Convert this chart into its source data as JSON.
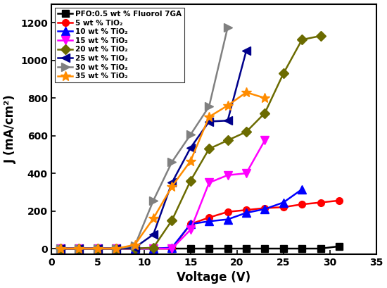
{
  "xlabel": "Voltage (V)",
  "ylabel": "J (mA/cm²)",
  "xlim": [
    0,
    35
  ],
  "ylim": [
    -30,
    1300
  ],
  "yticks": [
    0,
    200,
    400,
    600,
    800,
    1000,
    1200
  ],
  "xticks": [
    0,
    5,
    10,
    15,
    20,
    25,
    30,
    35
  ],
  "series": [
    {
      "label": "PFO:0.5 wt % Fluorol 7GA",
      "color": "#000000",
      "marker": "s",
      "markersize": 7,
      "x": [
        1,
        3,
        5,
        7,
        9,
        11,
        13,
        15,
        17,
        19,
        21,
        23,
        25,
        27,
        29,
        31
      ],
      "y": [
        0,
        0,
        0,
        0,
        0,
        0,
        0,
        0,
        0,
        0,
        0,
        0,
        0,
        0,
        0,
        12
      ]
    },
    {
      "label": "5 wt % TiO₂",
      "color": "#ff0000",
      "marker": "o",
      "markersize": 7,
      "x": [
        1,
        3,
        5,
        7,
        9,
        11,
        13,
        15,
        17,
        19,
        21,
        23,
        25,
        27,
        29,
        31
      ],
      "y": [
        0,
        0,
        0,
        0,
        0,
        0,
        0,
        130,
        165,
        195,
        205,
        215,
        220,
        235,
        245,
        255
      ]
    },
    {
      "label": "10 wt % TiO₂",
      "color": "#0000ff",
      "marker": "^",
      "markersize": 8,
      "x": [
        1,
        3,
        5,
        7,
        9,
        11,
        13,
        15,
        17,
        19,
        21,
        23,
        25,
        27
      ],
      "y": [
        0,
        0,
        0,
        0,
        0,
        0,
        5,
        130,
        145,
        155,
        190,
        210,
        245,
        315
      ]
    },
    {
      "label": "15 wt % TiO₂",
      "color": "#ff00ff",
      "marker": "v",
      "markersize": 8,
      "x": [
        1,
        3,
        5,
        7,
        9,
        11,
        13,
        15,
        17,
        19,
        21,
        23
      ],
      "y": [
        0,
        0,
        0,
        0,
        0,
        0,
        0,
        100,
        350,
        390,
        400,
        575
      ]
    },
    {
      "label": "20 wt % TiO₂",
      "color": "#6b6b00",
      "marker": "D",
      "markersize": 7,
      "x": [
        1,
        3,
        5,
        7,
        9,
        11,
        13,
        15,
        17,
        19,
        21,
        23,
        25,
        27,
        29
      ],
      "y": [
        0,
        0,
        0,
        0,
        0,
        5,
        150,
        360,
        530,
        575,
        620,
        720,
        930,
        1110,
        1130
      ]
    },
    {
      "label": "25 wt % TiO₂",
      "color": "#00008b",
      "marker": "<",
      "markersize": 8,
      "x": [
        1,
        3,
        5,
        7,
        9,
        11,
        13,
        15,
        17,
        19,
        21
      ],
      "y": [
        0,
        0,
        0,
        0,
        5,
        75,
        350,
        535,
        675,
        680,
        1050
      ]
    },
    {
      "label": "30 wt % TiO₂",
      "color": "#808080",
      "marker": ">",
      "markersize": 8,
      "x": [
        1,
        3,
        5,
        7,
        9,
        11,
        13,
        15,
        17,
        19
      ],
      "y": [
        0,
        0,
        0,
        0,
        15,
        255,
        460,
        605,
        755,
        1175
      ]
    },
    {
      "label": "35 wt % TiO₂",
      "color": "#ff8c00",
      "marker": "*",
      "markersize": 10,
      "x": [
        1,
        3,
        5,
        7,
        9,
        11,
        13,
        15,
        17,
        19,
        21,
        23
      ],
      "y": [
        0,
        0,
        0,
        0,
        20,
        160,
        330,
        465,
        700,
        760,
        830,
        800
      ]
    }
  ]
}
